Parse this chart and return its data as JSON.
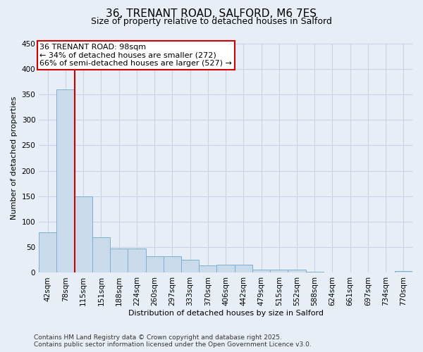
{
  "title_line1": "36, TRENANT ROAD, SALFORD, M6 7ES",
  "title_line2": "Size of property relative to detached houses in Salford",
  "xlabel": "Distribution of detached houses by size in Salford",
  "ylabel": "Number of detached properties",
  "footnote": "Contains HM Land Registry data © Crown copyright and database right 2025.\nContains public sector information licensed under the Open Government Licence v3.0.",
  "categories": [
    "42sqm",
    "78sqm",
    "115sqm",
    "151sqm",
    "188sqm",
    "224sqm",
    "260sqm",
    "297sqm",
    "333sqm",
    "370sqm",
    "406sqm",
    "442sqm",
    "479sqm",
    "515sqm",
    "552sqm",
    "588sqm",
    "624sqm",
    "661sqm",
    "697sqm",
    "734sqm",
    "770sqm"
  ],
  "bar_heights": [
    80,
    360,
    150,
    70,
    48,
    48,
    32,
    32,
    25,
    14,
    16,
    16,
    6,
    6,
    6,
    2,
    1,
    0,
    0,
    0,
    3
  ],
  "bar_color": "#c9daea",
  "bar_edge_color": "#7ab0d4",
  "vline_x": 1.5,
  "vline_color": "#cc0000",
  "annotation_text": "36 TRENANT ROAD: 98sqm\n← 34% of detached houses are smaller (272)\n66% of semi-detached houses are larger (527) →",
  "annotation_box_edgecolor": "#cc0000",
  "annotation_bg": "#ffffff",
  "ylim_max": 450,
  "yticks": [
    0,
    50,
    100,
    150,
    200,
    250,
    300,
    350,
    400,
    450
  ],
  "grid_color": "#c8d4e4",
  "bg_color": "#e8eef6",
  "title1_fontsize": 11,
  "title2_fontsize": 9,
  "ylabel_fontsize": 8,
  "xlabel_fontsize": 8,
  "tick_fontsize": 7.5,
  "annotation_fontsize": 8,
  "footnote_fontsize": 6.5
}
